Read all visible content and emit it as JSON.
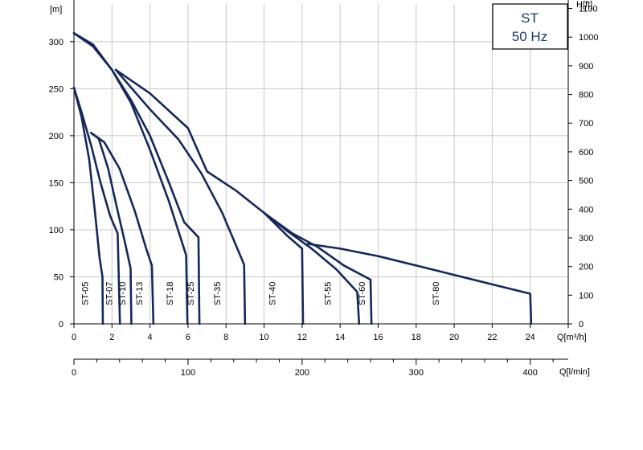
{
  "chart_data": {
    "type": "line",
    "legend_box": {
      "line1": "ST",
      "line2": "50 Hz",
      "position": "top-right"
    },
    "y_left": {
      "unit": "[m]",
      "ticks": [
        0,
        50,
        100,
        150,
        200,
        250,
        300
      ],
      "range": [
        0,
        340
      ]
    },
    "y_right": {
      "unit": "H[ft]",
      "ticks": [
        0,
        100,
        200,
        300,
        400,
        500,
        600,
        700,
        800,
        900,
        1000,
        1100
      ],
      "range": [
        0,
        1115.5
      ]
    },
    "x_main": {
      "unit": "Q[m³/h]",
      "ticks": [
        0,
        2,
        4,
        6,
        8,
        10,
        12,
        14,
        16,
        18,
        20,
        22,
        24,
        26
      ],
      "tick_labels": [
        "0",
        "2",
        "4",
        "6",
        "8",
        "10",
        "12",
        "14",
        "16",
        "18",
        "20",
        "22",
        "24",
        ""
      ],
      "range": [
        0,
        26
      ]
    },
    "x_secondary": {
      "unit": "Q[l/min]",
      "ticks": [
        0,
        100,
        200,
        300,
        400
      ],
      "range": [
        0,
        433.3
      ]
    },
    "grid": true,
    "line_color": "#15285a",
    "series": [
      {
        "name": "ST-05",
        "points": [
          [
            0,
            251
          ],
          [
            0.4,
            220
          ],
          [
            0.8,
            175
          ],
          [
            1.1,
            120
          ],
          [
            1.35,
            70
          ],
          [
            1.5,
            50
          ],
          [
            1.52,
            0
          ]
        ]
      },
      {
        "name": "ST-07",
        "points": [
          [
            0,
            251
          ],
          [
            0.4,
            225
          ],
          [
            0.9,
            190
          ],
          [
            1.4,
            150
          ],
          [
            1.9,
            115
          ],
          [
            2.3,
            96
          ],
          [
            2.42,
            0
          ]
        ]
      },
      {
        "name": "ST-10",
        "points": [
          [
            0.9,
            203
          ],
          [
            1.3,
            197
          ],
          [
            1.8,
            165
          ],
          [
            2.3,
            120
          ],
          [
            2.7,
            85
          ],
          [
            2.98,
            59
          ],
          [
            3.02,
            0
          ]
        ]
      },
      {
        "name": "ST-13",
        "points": [
          [
            0.9,
            203
          ],
          [
            1.6,
            193
          ],
          [
            2.4,
            165
          ],
          [
            3.2,
            120
          ],
          [
            3.8,
            80
          ],
          [
            4.1,
            62
          ],
          [
            4.18,
            0
          ]
        ]
      },
      {
        "name": "ST-18",
        "points": [
          [
            0,
            309
          ],
          [
            1,
            295
          ],
          [
            2,
            270
          ],
          [
            3,
            235
          ],
          [
            4,
            185
          ],
          [
            5,
            130
          ],
          [
            5.9,
            73
          ],
          [
            5.97,
            0
          ]
        ]
      },
      {
        "name": "ST-25",
        "points": [
          [
            0,
            309
          ],
          [
            1,
            297
          ],
          [
            2,
            270
          ],
          [
            3,
            238
          ],
          [
            4,
            200
          ],
          [
            5,
            150
          ],
          [
            5.8,
            108
          ],
          [
            6.55,
            92
          ],
          [
            6.6,
            0
          ]
        ]
      },
      {
        "name": "ST-35",
        "points": [
          [
            2.2,
            270
          ],
          [
            4,
            228
          ],
          [
            5.5,
            196
          ],
          [
            6.7,
            160
          ],
          [
            7.8,
            118
          ],
          [
            8.95,
            63
          ],
          [
            9.0,
            0
          ]
        ]
      },
      {
        "name": "ST-40",
        "points": [
          [
            2.2,
            270
          ],
          [
            4,
            245
          ],
          [
            6,
            208
          ],
          [
            7,
            162
          ],
          [
            8.5,
            142
          ],
          [
            10,
            118
          ],
          [
            11.2,
            94
          ],
          [
            12,
            80
          ],
          [
            12.05,
            0
          ]
        ]
      },
      {
        "name": "ST-55",
        "points": [
          [
            10,
            118
          ],
          [
            11.2,
            99
          ],
          [
            12.5,
            80
          ],
          [
            13.8,
            58
          ],
          [
            14.9,
            34
          ],
          [
            15.0,
            0
          ]
        ]
      },
      {
        "name": "ST-60",
        "points": [
          [
            10,
            118
          ],
          [
            11.5,
            96
          ],
          [
            12.8,
            82
          ],
          [
            14.2,
            62
          ],
          [
            15.6,
            47
          ],
          [
            15.65,
            0
          ]
        ]
      },
      {
        "name": "ST-80",
        "points": [
          [
            12.3,
            85
          ],
          [
            14,
            80
          ],
          [
            16,
            72
          ],
          [
            18,
            62
          ],
          [
            20,
            52
          ],
          [
            22,
            42
          ],
          [
            24,
            32
          ],
          [
            24.05,
            0
          ]
        ]
      }
    ],
    "series_labels": [
      {
        "text": "ST-05",
        "x": 0.75
      },
      {
        "text": "ST-07",
        "x": 2.0
      },
      {
        "text": "ST-10",
        "x": 2.7
      },
      {
        "text": "ST-13",
        "x": 3.6
      },
      {
        "text": "ST-18",
        "x": 5.2
      },
      {
        "text": "ST-25",
        "x": 6.3
      },
      {
        "text": "ST-35",
        "x": 7.7
      },
      {
        "text": "ST-40",
        "x": 10.6
      },
      {
        "text": "ST-55",
        "x": 13.5
      },
      {
        "text": "ST-60",
        "x": 15.3
      },
      {
        "text": "ST-80",
        "x": 19.2
      }
    ]
  }
}
